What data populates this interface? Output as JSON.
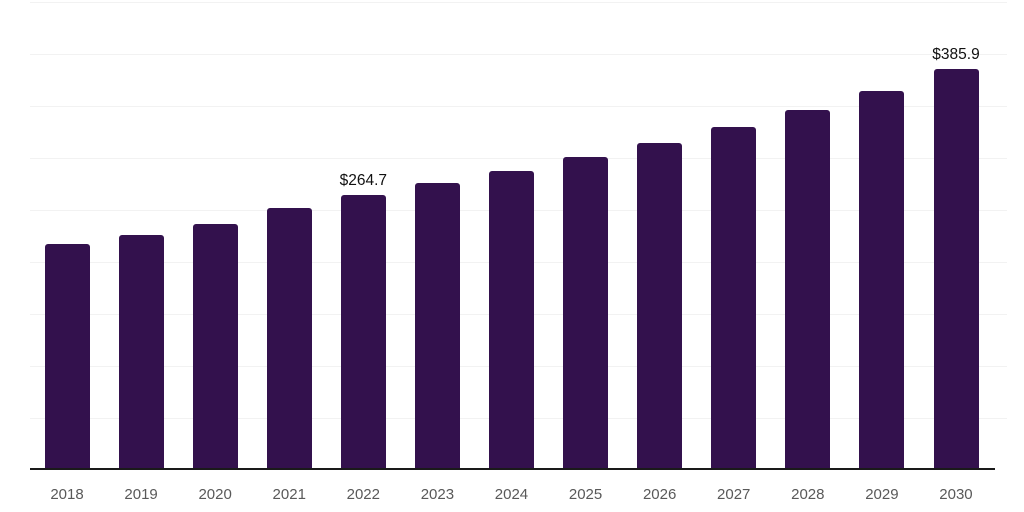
{
  "chart_data": {
    "type": "bar",
    "title": "",
    "xlabel": "",
    "ylabel": "",
    "categories": [
      "2018",
      "2019",
      "2020",
      "2021",
      "2022",
      "2023",
      "2024",
      "2025",
      "2026",
      "2027",
      "2028",
      "2029",
      "2030"
    ],
    "values": [
      217.3,
      226.3,
      236.2,
      251.9,
      264.7,
      275.7,
      287.5,
      300.6,
      314.7,
      329.5,
      346.1,
      364.4,
      385.9
    ],
    "data_labels": {
      "2022": "$264.7",
      "2030": "$385.9"
    },
    "ylim": [
      0,
      450
    ],
    "gridline_step": 50,
    "grid": "horizontal",
    "legend": "none",
    "colors": {
      "bar": "#33114d",
      "axis_line": "#1a1a1a",
      "gridline": "#f2f2f2",
      "tick_label": "#595959",
      "value_label": "#111111",
      "background": "#ffffff"
    }
  }
}
